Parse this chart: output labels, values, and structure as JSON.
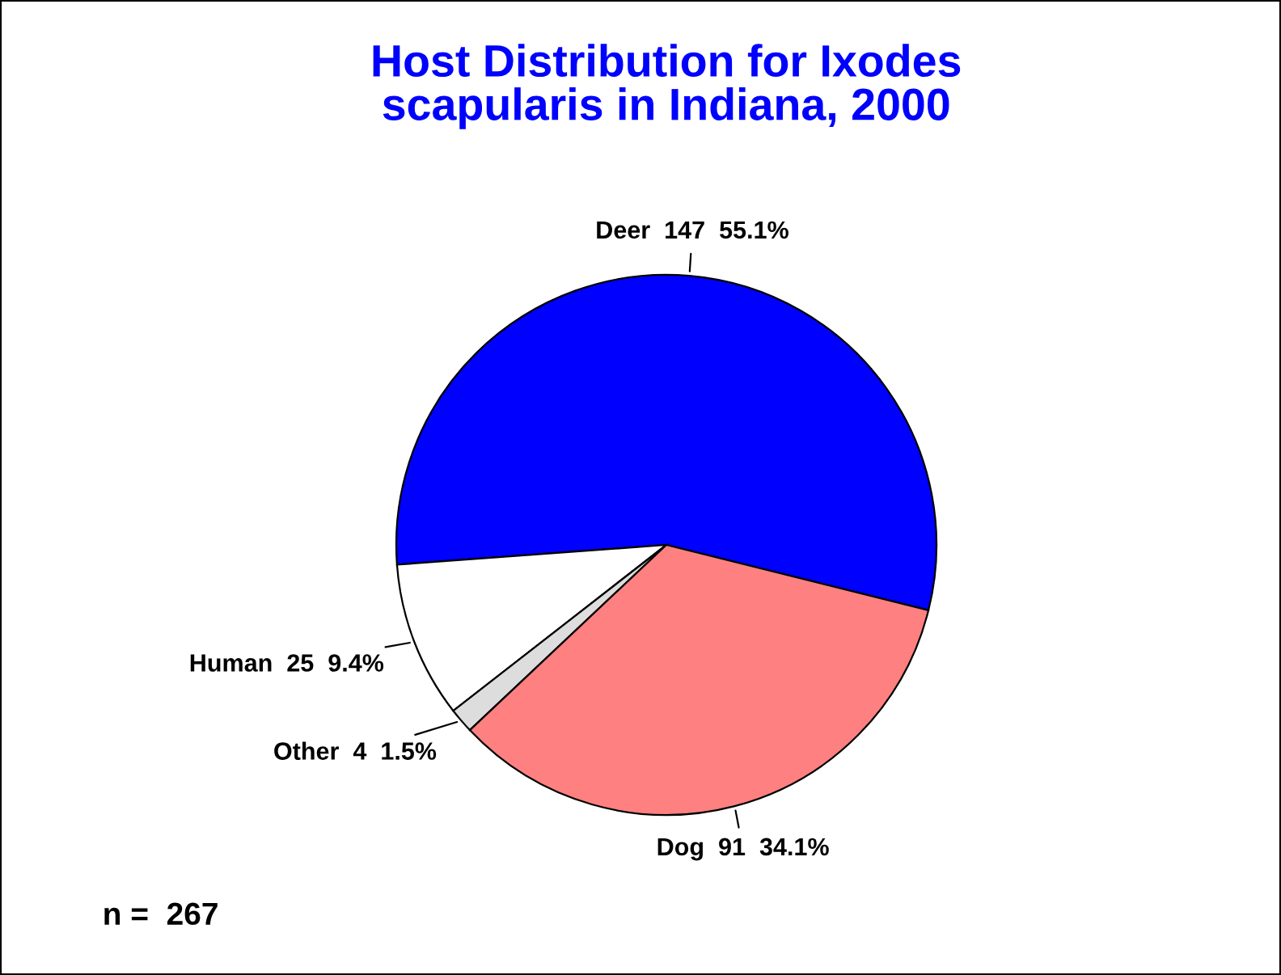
{
  "chart_data": {
    "type": "pie",
    "title": "Host Distribution for Ixodes scapularis in Indiana, 2000",
    "categories": [
      "Deer",
      "Human",
      "Other",
      "Dog"
    ],
    "values": [
      147,
      25,
      4,
      91
    ],
    "value_labels": [
      "147  55.1%",
      "25  9.4%",
      "4  1.5%",
      "91  34.1%"
    ],
    "colors": [
      "#0000ff",
      "#ffffff",
      "#dddddd",
      "#ff8080"
    ],
    "annotations": [
      "n =  267"
    ]
  }
}
